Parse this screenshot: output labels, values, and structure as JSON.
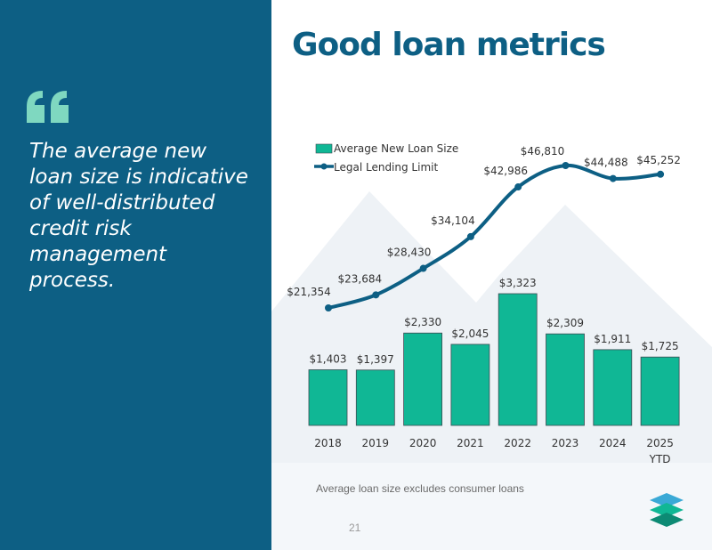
{
  "slide": {
    "title": "Good loan metrics",
    "quote": "The average new loan size is indicative of well-distributed credit risk management process.",
    "footnote": "Average loan size excludes consumer loans",
    "page_number": "21"
  },
  "colors": {
    "panel": "#0d5f84",
    "accent": "#7fd8c0",
    "bar": "#10b795",
    "line": "#0d5f84",
    "title": "#0d5f84"
  },
  "chart_data": {
    "type": "bar",
    "title": "",
    "xlabel": "",
    "ylabel": "",
    "categories": [
      "2018",
      "2019",
      "2020",
      "2021",
      "2022",
      "2023",
      "2024",
      "2025 YTD"
    ],
    "legend_placement": "top-left",
    "grid": false,
    "series": [
      {
        "name": "Average New Loan Size",
        "type": "bar",
        "values": [
          1403,
          1397,
          2330,
          2045,
          3323,
          2309,
          1911,
          1725
        ],
        "labels": [
          "$1,403",
          "$1,397",
          "$2,330",
          "$2,045",
          "$3,323",
          "$2,309",
          "$1,911",
          "$1,725"
        ],
        "ylim": [
          0,
          3700
        ]
      },
      {
        "name": "Legal Lending Limit",
        "type": "line",
        "values": [
          21354,
          23684,
          28430,
          34104,
          42986,
          46810,
          44488,
          45252
        ],
        "labels": [
          "$21,354",
          "$23,684",
          "$28,430",
          "$34,104",
          "$42,986",
          "$46,810",
          "$44,488",
          "$45,252"
        ],
        "ylim": [
          0,
          51000
        ]
      }
    ]
  }
}
